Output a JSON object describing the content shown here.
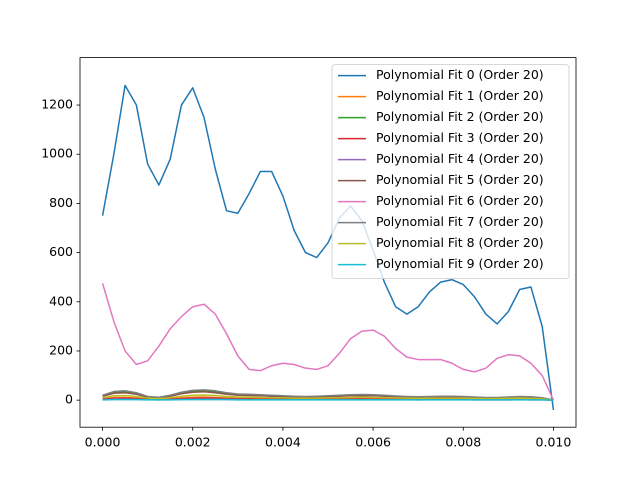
{
  "chart_data": {
    "type": "line",
    "x": [
      0,
      0.00025,
      0.0005,
      0.00075,
      0.001,
      0.00125,
      0.0015,
      0.00175,
      0.002,
      0.00225,
      0.0025,
      0.00275,
      0.003,
      0.00325,
      0.0035,
      0.00375,
      0.004,
      0.00425,
      0.0045,
      0.00475,
      0.005,
      0.00525,
      0.0055,
      0.00575,
      0.006,
      0.00625,
      0.0065,
      0.00675,
      0.007,
      0.00725,
      0.0075,
      0.00775,
      0.008,
      0.00825,
      0.0085,
      0.00875,
      0.009,
      0.00925,
      0.0095,
      0.00975,
      0.01
    ],
    "xlim": [
      -0.0005,
      0.0105
    ],
    "xticks": [
      {
        "value": 0,
        "label": "0.000"
      },
      {
        "value": 0.002,
        "label": "0.002"
      },
      {
        "value": 0.004,
        "label": "0.004"
      },
      {
        "value": 0.006,
        "label": "0.006"
      },
      {
        "value": 0.008,
        "label": "0.008"
      },
      {
        "value": 0.01,
        "label": "0.010"
      }
    ],
    "ylim": [
      -110,
      1393
    ],
    "yticks": [
      0,
      200,
      400,
      600,
      800,
      1000,
      1200
    ],
    "legend": "upper right",
    "series": [
      {
        "name": "Polynomial Fit 0 (Order 20)",
        "color": "#1f77b4",
        "values": [
          750,
          1000,
          1280,
          1200,
          960,
          875,
          980,
          1200,
          1270,
          1150,
          940,
          770,
          760,
          840,
          930,
          930,
          830,
          690,
          600,
          580,
          640,
          740,
          790,
          730,
          610,
          480,
          380,
          350,
          380,
          440,
          480,
          490,
          470,
          420,
          350,
          310,
          360,
          450,
          460,
          300,
          -40
        ]
      },
      {
        "name": "Polynomial Fit 1 (Order 20)",
        "color": "#ff7f0e",
        "values": [
          6,
          11,
          11,
          9,
          5,
          4,
          6,
          10,
          12,
          13,
          11,
          9,
          8,
          7,
          7,
          6,
          5,
          5,
          5,
          5,
          5,
          6,
          7,
          7,
          7,
          6,
          5,
          5,
          4,
          5,
          5,
          5,
          5,
          4,
          3,
          3,
          4,
          5,
          4,
          3,
          0
        ]
      },
      {
        "name": "Polynomial Fit 2 (Order 20)",
        "color": "#2ca02c",
        "values": [
          18,
          32,
          34,
          27,
          14,
          11,
          18,
          29,
          36,
          38,
          34,
          27,
          23,
          22,
          20,
          18,
          16,
          14,
          14,
          14,
          16,
          18,
          20,
          21,
          20,
          18,
          15,
          14,
          13,
          14,
          14,
          14,
          14,
          12,
          10,
          10,
          12,
          14,
          13,
          9,
          0
        ]
      },
      {
        "name": "Polynomial Fit 3 (Order 20)",
        "color": "#d62728",
        "values": [
          4,
          7,
          8,
          6,
          3,
          2,
          4,
          6,
          8,
          8,
          8,
          6,
          5,
          5,
          4,
          4,
          4,
          3,
          3,
          3,
          4,
          4,
          4,
          5,
          4,
          4,
          3,
          3,
          3,
          3,
          3,
          3,
          3,
          3,
          2,
          2,
          3,
          3,
          3,
          2,
          0
        ]
      },
      {
        "name": "Polynomial Fit 4 (Order 20)",
        "color": "#9467bd",
        "values": [
          2,
          4,
          4,
          3,
          2,
          1,
          2,
          3,
          4,
          4,
          4,
          3,
          3,
          2,
          2,
          2,
          2,
          2,
          2,
          2,
          2,
          2,
          2,
          2,
          2,
          2,
          2,
          2,
          1,
          2,
          2,
          2,
          2,
          1,
          1,
          1,
          1,
          2,
          1,
          1,
          0
        ]
      },
      {
        "name": "Polynomial Fit 5 (Order 20)",
        "color": "#8c564b",
        "values": [
          16,
          28,
          30,
          24,
          12,
          10,
          16,
          26,
          32,
          34,
          30,
          24,
          20,
          19,
          18,
          16,
          14,
          13,
          12,
          13,
          14,
          16,
          18,
          18,
          18,
          16,
          14,
          12,
          11,
          12,
          13,
          13,
          12,
          10,
          9,
          9,
          10,
          12,
          11,
          8,
          0
        ]
      },
      {
        "name": "Polynomial Fit 6 (Order 20)",
        "color": "#e377c2",
        "values": [
          475,
          320,
          200,
          145,
          160,
          220,
          290,
          340,
          380,
          390,
          350,
          270,
          180,
          125,
          120,
          140,
          150,
          145,
          130,
          125,
          140,
          190,
          250,
          280,
          285,
          260,
          210,
          175,
          165,
          165,
          165,
          150,
          125,
          115,
          130,
          170,
          185,
          180,
          150,
          100,
          0
        ]
      },
      {
        "name": "Polynomial Fit 7 (Order 20)",
        "color": "#7f7f7f",
        "values": [
          20,
          35,
          38,
          30,
          15,
          12,
          20,
          32,
          40,
          42,
          38,
          30,
          25,
          24,
          22,
          20,
          18,
          16,
          15,
          16,
          18,
          20,
          22,
          23,
          22,
          20,
          17,
          15,
          14,
          15,
          16,
          16,
          15,
          13,
          11,
          11,
          13,
          15,
          14,
          10,
          0
        ]
      },
      {
        "name": "Polynomial Fit 8 (Order 20)",
        "color": "#bcbd22",
        "values": [
          10,
          18,
          19,
          15,
          8,
          6,
          10,
          16,
          20,
          21,
          19,
          15,
          13,
          12,
          11,
          10,
          9,
          8,
          8,
          8,
          9,
          10,
          11,
          12,
          11,
          10,
          9,
          8,
          7,
          8,
          8,
          8,
          8,
          7,
          6,
          6,
          7,
          8,
          7,
          5,
          0
        ]
      },
      {
        "name": "Polynomial Fit 9 (Order 20)",
        "color": "#17becf",
        "values": [
          1,
          2,
          2,
          2,
          1,
          1,
          1,
          2,
          2,
          2,
          2,
          2,
          1,
          1,
          1,
          1,
          1,
          1,
          1,
          1,
          1,
          1,
          1,
          1,
          1,
          1,
          1,
          1,
          1,
          1,
          1,
          1,
          1,
          1,
          1,
          1,
          1,
          1,
          1,
          1,
          0
        ]
      }
    ]
  }
}
